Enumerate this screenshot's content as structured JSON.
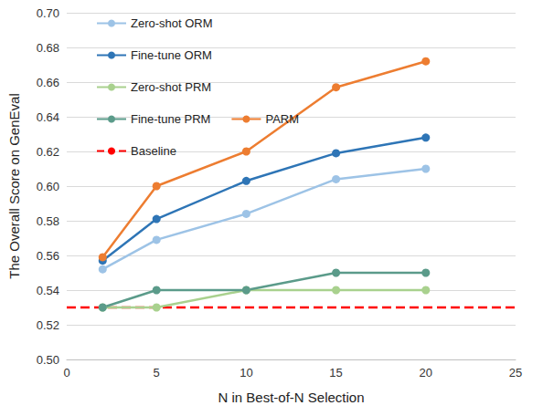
{
  "chart_data": {
    "type": "line",
    "x_label": "N in Best-of-N Selection",
    "y_label": "The Overall Score on GenEval",
    "x": [
      2,
      5,
      10,
      15,
      20
    ],
    "series": [
      {
        "name": "Zero-shot ORM",
        "color": "#9dc3e6",
        "marker": "circle",
        "values": [
          0.552,
          0.569,
          0.584,
          0.604,
          0.61
        ]
      },
      {
        "name": "Fine-tune ORM",
        "color": "#2e75b6",
        "marker": "circle",
        "values": [
          0.557,
          0.581,
          0.603,
          0.619,
          0.628
        ]
      },
      {
        "name": "Zero-shot PRM",
        "color": "#a9d18e",
        "marker": "circle",
        "values": [
          0.53,
          0.53,
          0.54,
          0.54,
          0.54
        ]
      },
      {
        "name": "Fine-tune PRM",
        "color": "#5b9b8a",
        "marker": "circle",
        "values": [
          0.53,
          0.54,
          0.54,
          0.55,
          0.55
        ]
      },
      {
        "name": "PARM",
        "color": "#ed7d31",
        "marker": "circle",
        "values": [
          0.559,
          0.6,
          0.62,
          0.657,
          0.672
        ]
      },
      {
        "name": "Baseline",
        "color": "#ff0000",
        "marker": "none",
        "line_style": "dashed",
        "x": [
          0,
          25
        ],
        "values": [
          0.53,
          0.53
        ]
      }
    ],
    "xlim": [
      0,
      25
    ],
    "xticks": [
      0,
      5,
      10,
      15,
      20,
      25
    ],
    "ylim": [
      0.5,
      0.7
    ],
    "yticks": [
      {
        "value": 0.5,
        "label": "0.50"
      },
      0.52,
      0.54,
      0.56,
      0.58,
      {
        "value": 0.6,
        "label": "0.60"
      },
      0.62,
      0.64,
      0.66,
      0.68,
      {
        "value": 0.7,
        "label": "0.70"
      }
    ],
    "grid": true,
    "legend": "upper left"
  }
}
